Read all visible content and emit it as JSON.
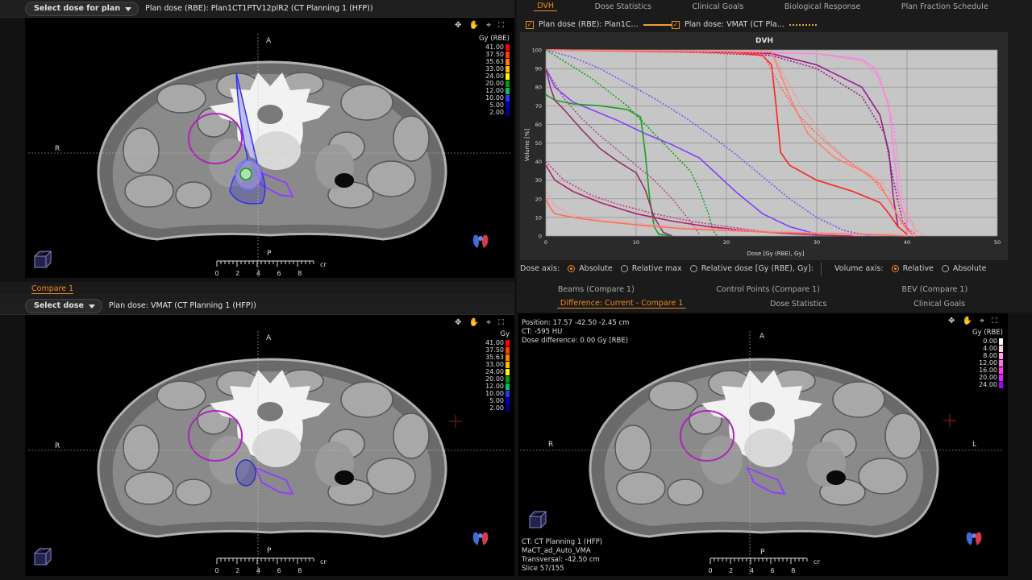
{
  "top_left": {
    "dose_select_label": "Select dose for plan",
    "plan_label": "Plan dose (RBE): Plan1CT1PTV12plR2 (CT Planning 1 (HFP))",
    "orient": {
      "anterior": "A",
      "right": "R",
      "posterior": "P"
    },
    "legend_title": "Gy (RBE)",
    "legend": [
      {
        "value": "41.00",
        "color": "#ff0000"
      },
      {
        "value": "37.50",
        "color": "#ff4000"
      },
      {
        "value": "35.63",
        "color": "#ff8000"
      },
      {
        "value": "33.00",
        "color": "#ffc000"
      },
      {
        "value": "24.00",
        "color": "#ffff00"
      },
      {
        "value": "20.00",
        "color": "#00a000"
      },
      {
        "value": "12.00",
        "color": "#00c060"
      },
      {
        "value": "10.00",
        "color": "#3030ff"
      },
      {
        "value": "5.00",
        "color": "#0000c0"
      },
      {
        "value": "2.00",
        "color": "#000080"
      }
    ],
    "scale": [
      "0",
      "2",
      "4",
      "6",
      "8"
    ],
    "scale_unit": "cm",
    "tools": "✥ ✋ ⌖ ⛶"
  },
  "top_right": {
    "tabs": [
      "DVH",
      "Dose Statistics",
      "Clinical Goals",
      "Biological Response",
      "Plan Fraction Schedule"
    ],
    "check1": "Plan dose (RBE): Plan1C...",
    "check2": "Plan dose: VMAT (CT Pla...",
    "dose_axis_label": "Dose axis:",
    "dose_axis_options": [
      "Absolute",
      "Relative max",
      "Relative dose [Gy (RBE), Gy]:"
    ],
    "volume_axis_label": "Volume axis:",
    "volume_axis_options": [
      "Relative",
      "Absolute"
    ]
  },
  "chart_data": {
    "type": "line",
    "title": "DVH",
    "xlabel": "Dose [Gy (RBE), Gy]",
    "ylabel": "Volume [%]",
    "xlim": [
      0,
      50
    ],
    "ylim": [
      0,
      100
    ],
    "xticks": [
      0,
      10,
      20,
      30,
      40,
      50
    ],
    "yticks": [
      0,
      10,
      20,
      30,
      40,
      50,
      60,
      70,
      80,
      90,
      100
    ],
    "series": [
      {
        "color": "#ff80e0",
        "dash": false,
        "points": [
          [
            0,
            100
          ],
          [
            20,
            99
          ],
          [
            30,
            98
          ],
          [
            35,
            95
          ],
          [
            36.5,
            90
          ],
          [
            38,
            70
          ],
          [
            39,
            25
          ],
          [
            40,
            5
          ],
          [
            40.5,
            1
          ]
        ]
      },
      {
        "color": "#ff80e0",
        "dash": true,
        "points": [
          [
            0,
            100
          ],
          [
            20,
            99
          ],
          [
            30,
            98
          ],
          [
            35,
            94
          ],
          [
            37,
            85
          ],
          [
            38.5,
            60
          ],
          [
            39.5,
            20
          ],
          [
            41,
            2
          ]
        ]
      },
      {
        "color": "#9a1a88",
        "dash": false,
        "points": [
          [
            0,
            100
          ],
          [
            15,
            99
          ],
          [
            25,
            98
          ],
          [
            30,
            92
          ],
          [
            35,
            80
          ],
          [
            37,
            65
          ],
          [
            38,
            45
          ],
          [
            38.5,
            20
          ],
          [
            39,
            5
          ]
        ]
      },
      {
        "color": "#9a1a88",
        "dash": true,
        "points": [
          [
            0,
            100
          ],
          [
            15,
            99
          ],
          [
            25,
            97
          ],
          [
            30,
            90
          ],
          [
            35,
            75
          ],
          [
            37.5,
            55
          ],
          [
            38.5,
            30
          ],
          [
            39.5,
            8
          ],
          [
            40.5,
            1
          ]
        ]
      },
      {
        "color": "#ff2020",
        "dash": false,
        "points": [
          [
            0,
            100
          ],
          [
            20,
            99
          ],
          [
            24,
            97
          ],
          [
            25,
            92
          ],
          [
            25.5,
            70
          ],
          [
            26,
            45
          ],
          [
            27,
            38
          ],
          [
            30,
            30
          ],
          [
            34,
            24
          ],
          [
            37,
            18
          ],
          [
            38,
            12
          ],
          [
            39,
            5
          ],
          [
            40,
            1
          ]
        ]
      },
      {
        "color": "#ff6060",
        "dash": true,
        "points": [
          [
            0,
            100
          ],
          [
            24,
            98
          ],
          [
            26,
            80
          ],
          [
            28,
            65
          ],
          [
            30,
            55
          ],
          [
            33,
            42
          ],
          [
            36,
            32
          ],
          [
            38,
            20
          ],
          [
            39.5,
            6
          ],
          [
            41,
            1
          ]
        ]
      },
      {
        "color": "#ff8070",
        "dash": false,
        "points": [
          [
            0,
            100
          ],
          [
            25,
            99
          ],
          [
            27,
            75
          ],
          [
            29,
            55
          ],
          [
            32,
            42
          ],
          [
            35,
            35
          ],
          [
            37,
            28
          ],
          [
            38.5,
            15
          ],
          [
            40,
            3
          ],
          [
            41,
            0
          ]
        ]
      },
      {
        "color": "#ff9080",
        "dash": true,
        "points": [
          [
            0,
            100
          ],
          [
            25,
            99
          ],
          [
            28,
            72
          ],
          [
            31,
            52
          ],
          [
            34,
            38
          ],
          [
            37,
            30
          ],
          [
            39,
            18
          ],
          [
            41,
            3
          ],
          [
            42,
            0
          ]
        ]
      },
      {
        "color": "#8040ff",
        "dash": false,
        "points": [
          [
            0,
            90
          ],
          [
            1,
            80
          ],
          [
            3,
            72
          ],
          [
            5,
            68
          ],
          [
            8,
            62
          ],
          [
            11,
            55
          ],
          [
            14,
            49
          ],
          [
            17,
            42
          ],
          [
            19,
            33
          ],
          [
            21,
            24
          ],
          [
            24,
            12
          ],
          [
            27,
            5
          ],
          [
            30,
            1
          ]
        ]
      },
      {
        "color": "#8050ff",
        "dash": true,
        "points": [
          [
            0,
            100
          ],
          [
            3,
            96
          ],
          [
            6,
            90
          ],
          [
            9,
            82
          ],
          [
            12,
            74
          ],
          [
            15,
            65
          ],
          [
            18,
            55
          ],
          [
            21,
            44
          ],
          [
            24,
            32
          ],
          [
            27,
            20
          ],
          [
            30,
            10
          ],
          [
            33,
            3
          ],
          [
            36,
            0
          ]
        ]
      },
      {
        "color": "#18a020",
        "dash": false,
        "points": [
          [
            0,
            76
          ],
          [
            1,
            73
          ],
          [
            3,
            71
          ],
          [
            6,
            70
          ],
          [
            9,
            68
          ],
          [
            10.5,
            64
          ],
          [
            11,
            45
          ],
          [
            11.5,
            20
          ],
          [
            12,
            5
          ],
          [
            12.5,
            1
          ],
          [
            14,
            0
          ]
        ]
      },
      {
        "color": "#18a020",
        "dash": true,
        "points": [
          [
            0,
            100
          ],
          [
            5,
            85
          ],
          [
            9,
            70
          ],
          [
            12,
            55
          ],
          [
            14,
            45
          ],
          [
            16,
            35
          ],
          [
            17,
            25
          ],
          [
            18,
            12
          ],
          [
            18.5,
            3
          ],
          [
            19,
            0
          ]
        ]
      },
      {
        "color": "#903070",
        "dash": false,
        "points": [
          [
            0,
            90
          ],
          [
            0.5,
            80
          ],
          [
            1,
            73
          ],
          [
            2,
            68
          ],
          [
            4,
            57
          ],
          [
            6,
            47
          ],
          [
            8,
            40
          ],
          [
            10,
            34
          ],
          [
            11,
            25
          ],
          [
            12,
            10
          ],
          [
            13,
            2
          ],
          [
            14,
            0
          ]
        ]
      },
      {
        "color": "#b05090",
        "dash": true,
        "points": [
          [
            0,
            90
          ],
          [
            2,
            74
          ],
          [
            4,
            63
          ],
          [
            6,
            54
          ],
          [
            8,
            46
          ],
          [
            10,
            38
          ],
          [
            12,
            30
          ],
          [
            14,
            20
          ],
          [
            16,
            8
          ],
          [
            17,
            1
          ]
        ]
      },
      {
        "color": "#b02070",
        "dash": false,
        "points": [
          [
            0,
            38
          ],
          [
            1,
            30
          ],
          [
            3,
            24
          ],
          [
            6,
            18
          ],
          [
            10,
            12
          ],
          [
            14,
            8
          ],
          [
            18,
            5
          ],
          [
            22,
            3
          ],
          [
            26,
            1.5
          ],
          [
            30,
            0.5
          ],
          [
            34,
            0
          ]
        ]
      },
      {
        "color": "#c04080",
        "dash": true,
        "points": [
          [
            0,
            40
          ],
          [
            2,
            30
          ],
          [
            5,
            22
          ],
          [
            8,
            17
          ],
          [
            12,
            12
          ],
          [
            16,
            8
          ],
          [
            20,
            5
          ],
          [
            25,
            2
          ],
          [
            30,
            0.5
          ]
        ]
      },
      {
        "color": "#ff7050",
        "dash": false,
        "points": [
          [
            0,
            20
          ],
          [
            0.5,
            15
          ],
          [
            1,
            12
          ],
          [
            3,
            10
          ],
          [
            6,
            8
          ],
          [
            10,
            6
          ],
          [
            15,
            4
          ],
          [
            20,
            3
          ],
          [
            25,
            2
          ],
          [
            30,
            1.5
          ],
          [
            35,
            1
          ],
          [
            38,
            0.5
          ],
          [
            40,
            0
          ]
        ]
      },
      {
        "color": "#ff90a0",
        "dash": true,
        "points": [
          [
            0,
            25
          ],
          [
            1,
            16
          ],
          [
            3,
            11
          ],
          [
            7,
            8
          ],
          [
            12,
            6
          ],
          [
            18,
            4
          ],
          [
            25,
            2.5
          ],
          [
            32,
            1.5
          ],
          [
            38,
            1
          ],
          [
            41,
            0
          ]
        ]
      }
    ]
  },
  "bottom_left": {
    "section_tab": "Compare 1",
    "dose_select_label": "Select dose",
    "plan_label": "Plan dose: VMAT (CT Planning 1 (HFP))",
    "orient": {
      "anterior": "A",
      "right": "R",
      "posterior": "P"
    },
    "legend_title": "Gy",
    "legend": [
      {
        "value": "41.00",
        "color": "#ff0000"
      },
      {
        "value": "37.50",
        "color": "#ff4000"
      },
      {
        "value": "35.63",
        "color": "#ff8000"
      },
      {
        "value": "33.00",
        "color": "#ffc000"
      },
      {
        "value": "24.00",
        "color": "#ffff00"
      },
      {
        "value": "20.00",
        "color": "#00a000"
      },
      {
        "value": "12.00",
        "color": "#00c060"
      },
      {
        "value": "10.00",
        "color": "#3030ff"
      },
      {
        "value": "5.00",
        "color": "#0000c0"
      },
      {
        "value": "2.00",
        "color": "#000080"
      }
    ],
    "scale": [
      "0",
      "2",
      "4",
      "6",
      "8"
    ],
    "scale_unit": "cm",
    "tools": "✥ ✋ ⌖ ⛶"
  },
  "bottom_right": {
    "tabs_row1": [
      "Beams (Compare 1)",
      "Control Points (Compare 1)",
      "BEV (Compare 1)"
    ],
    "tabs_row2": [
      "Difference: Current - Compare 1",
      "Dose Statistics",
      "Clinical Goals"
    ],
    "info": [
      "Position: 17.57 -42.50 -2.45 cm",
      "CT: -595 HU",
      "Dose difference: 0.00 Gy (RBE)"
    ],
    "orient": {
      "anterior": "A",
      "right": "R",
      "left": "L",
      "posterior": "P"
    },
    "legend_title": "Gy (RBE)",
    "legend": [
      {
        "value": "0.00",
        "color": "#ffffff"
      },
      {
        "value": "4.00",
        "color": "#ffd0f0"
      },
      {
        "value": "8.00",
        "color": "#ffa0e8"
      },
      {
        "value": "12.00",
        "color": "#ff70e0"
      },
      {
        "value": "16.00",
        "color": "#ff40d8"
      },
      {
        "value": "20.00",
        "color": "#e020ff"
      },
      {
        "value": "24.00",
        "color": "#a000ff"
      }
    ],
    "footer": [
      "CT: CT Planning 1 (HFP)",
      "MaCT_ad_Auto_VMA",
      "Transversal: -42.50 cm",
      "Slice 57/155"
    ],
    "scale": [
      "0",
      "2",
      "4",
      "6",
      "8"
    ],
    "scale_unit": "cm",
    "tools": "✥ ✋ ⌖ ⛶"
  }
}
